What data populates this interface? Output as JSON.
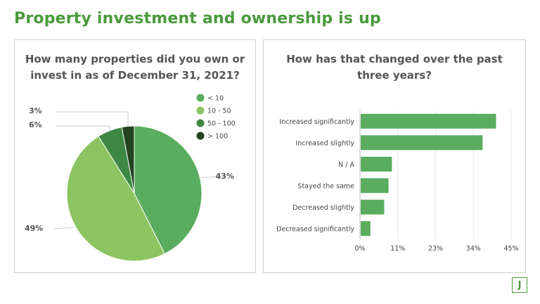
{
  "header": {
    "title": "Property investment and ownership is up"
  },
  "brand": {
    "logo_letter": "J",
    "accent": "#4a9a3c"
  },
  "chart_data": [
    {
      "type": "pie",
      "title": "How many properties did you own or invest in as of December 31, 2021?",
      "legend_position": "top-right",
      "slices": [
        {
          "label": "< 10",
          "value": 43,
          "display": "43%",
          "color": "#5aad5f"
        },
        {
          "label": "10 - 50",
          "value": 49,
          "display": "49%",
          "color": "#8dc462"
        },
        {
          "label": "50 - 100",
          "value": 6,
          "display": "6%",
          "color": "#3e8744"
        },
        {
          "label": "> 100",
          "value": 3,
          "display": "3%",
          "color": "#22441f"
        }
      ]
    },
    {
      "type": "bar",
      "orientation": "horizontal",
      "title": "How has that changed over the past three years?",
      "categories": [
        "Increased significantly",
        "Increased slightly",
        "N / A",
        "Stayed the same",
        "Decreased slightly",
        "Decreased significantly"
      ],
      "values": [
        40.5,
        36.5,
        9.5,
        8.5,
        7.2,
        3.1
      ],
      "xlim": [
        0,
        45
      ],
      "tick_labels": [
        "0%",
        "11%",
        "23%",
        "34%",
        "45%"
      ],
      "grid": true,
      "bar_color": "#5aad5f"
    }
  ]
}
